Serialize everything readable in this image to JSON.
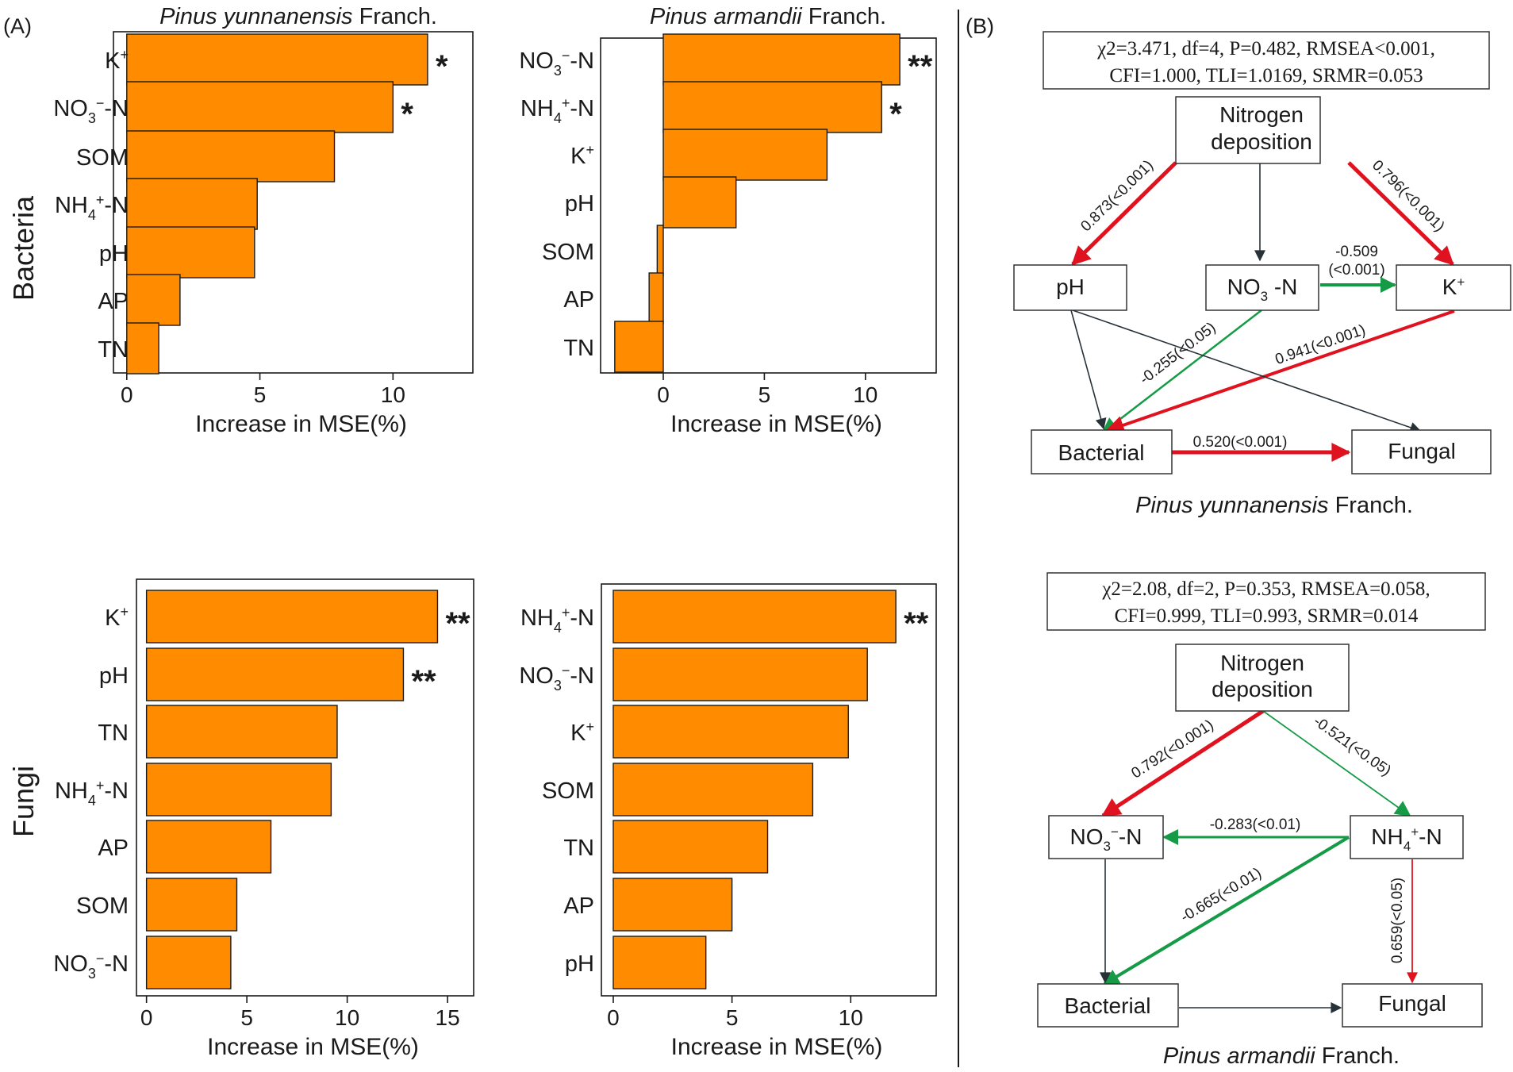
{
  "panel_labels": {
    "a": "(A)",
    "b": "(B)"
  },
  "row_labels": {
    "bacteria": "Bacteria",
    "fungi": "Fungi"
  },
  "colors": {
    "bar": "#FF8C00",
    "red": "#E0121F",
    "green": "#159A45",
    "dark": "#263238"
  },
  "chart_data": [
    {
      "id": "bact_yun",
      "type": "bar",
      "orientation": "horizontal",
      "title_italic": "Pinus yunnanensis",
      "title_plain": " Franch.",
      "xlabel": "Increase in MSE(%)",
      "xlim": [
        -0.5,
        13
      ],
      "xticks": [
        0,
        5,
        10
      ],
      "categories": [
        "K+",
        "NO3--N",
        "SOM",
        "NH4+-N",
        "pH",
        "AP",
        "TN"
      ],
      "values": [
        11.3,
        10.0,
        7.8,
        4.9,
        4.8,
        2.0,
        1.2
      ],
      "sig": [
        "*",
        "*",
        "",
        "",
        "",
        "",
        ""
      ]
    },
    {
      "id": "bact_arm",
      "type": "bar",
      "orientation": "horizontal",
      "title_italic": "Pinus armandii",
      "title_plain": " Franch.",
      "xlabel": "Increase in MSE(%)",
      "xlim": [
        -3.1,
        13.5
      ],
      "xticks": [
        0,
        5,
        10
      ],
      "categories": [
        "NO3--N",
        "NH4+-N",
        "K+",
        "pH",
        "SOM",
        "AP",
        "TN"
      ],
      "values": [
        11.7,
        10.8,
        8.1,
        3.6,
        -0.3,
        -0.7,
        -2.4
      ],
      "sig": [
        "**",
        "*",
        "",
        "",
        "",
        "",
        ""
      ]
    },
    {
      "id": "fung_yun",
      "type": "bar",
      "orientation": "horizontal",
      "title_italic": "",
      "title_plain": "",
      "xlabel": "Increase in MSE(%)",
      "xlim": [
        -0.5,
        16.3
      ],
      "xticks": [
        0,
        5,
        10,
        15
      ],
      "categories": [
        "K+",
        "pH",
        "TN",
        "NH4+-N",
        "AP",
        "SOM",
        "NO3--N"
      ],
      "values": [
        14.5,
        12.8,
        9.5,
        9.2,
        6.2,
        4.5,
        4.2
      ],
      "sig": [
        "**",
        "**",
        "",
        "",
        "",
        "",
        ""
      ]
    },
    {
      "id": "fung_arm",
      "type": "bar",
      "orientation": "horizontal",
      "title_italic": "",
      "title_plain": "",
      "xlabel": "Increase in MSE(%)",
      "xlim": [
        -0.5,
        13.6
      ],
      "xticks": [
        0,
        5,
        10
      ],
      "categories": [
        "NH4+-N",
        "NO3--N",
        "K+",
        "SOM",
        "TN",
        "AP",
        "pH"
      ],
      "values": [
        11.9,
        10.7,
        9.9,
        8.4,
        6.5,
        5.0,
        3.9
      ],
      "sig": [
        "**",
        "",
        "",
        "",
        "",
        "",
        ""
      ]
    }
  ],
  "sem_top": {
    "caption_italic": "Pinus yunnanensis",
    "caption_plain": " Franch.",
    "fit_line1": "χ2=3.471, df=4, P=0.482, RMSEA<0.001,",
    "fit_line2": "CFI=1.000, TLI=1.0169, SRMR=0.053",
    "nodes": {
      "n": [
        "Nitrogen",
        "deposition"
      ],
      "ph": "pH",
      "no3": "NO3 -N",
      "k": "K+",
      "bac": "Bacterial",
      "fun": "Fungal"
    },
    "paths": {
      "n_ph": "0.873(<0.001)",
      "n_k": "0.796(<0.001)",
      "no3_k_1": "-0.509",
      "no3_k_2": "(<0.001)",
      "no3_bac": "-0.255(<0.05)",
      "k_bac": "0.941(<0.001)",
      "bac_fun": "0.520(<0.001)"
    }
  },
  "sem_bottom": {
    "caption_italic": "Pinus armandii",
    "caption_plain": " Franch.",
    "fit_line1": "χ2=2.08, df=2, P=0.353, RMSEA=0.058,",
    "fit_line2": "CFI=0.999, TLI=0.993, SRMR=0.014",
    "nodes": {
      "n": [
        "Nitrogen",
        "deposition"
      ],
      "no3": "NO3--N",
      "nh4": "NH4+-N",
      "bac": "Bacterial",
      "fun": "Fungal"
    },
    "paths": {
      "n_no3": "0.792(<0.001)",
      "n_nh4": "-0.521(<0.05)",
      "nh4_no3": "-0.283(<0.01)",
      "nh4_bac": "-0.665(<0.01)",
      "nh4_fun": "0.659(<0.05)"
    }
  }
}
